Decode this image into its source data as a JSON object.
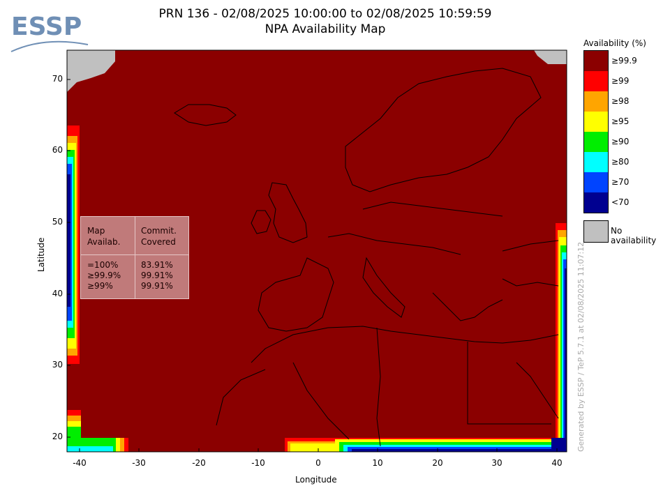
{
  "header": {
    "title_line1": "PRN 136 - 02/08/2025 10:00:00 to 02/08/2025 10:59:59",
    "title_line2": "NPA Availability Map"
  },
  "logo": {
    "text": "ESSP",
    "color": "#6f8fb5"
  },
  "axes": {
    "xlabel": "Longitude",
    "ylabel": "Latitude",
    "xticks": [
      "-40",
      "-30",
      "-20",
      "-10",
      "0",
      "10",
      "20",
      "30",
      "40"
    ],
    "yticks": [
      "70",
      "60",
      "50",
      "40",
      "30",
      "20"
    ],
    "xlim": [
      -42,
      42
    ],
    "ylim": [
      18,
      74
    ]
  },
  "legend": {
    "title": "Availability (%)",
    "entries": [
      {
        "label": "≥99.9",
        "color": "#8b0000"
      },
      {
        "label": "≥99",
        "color": "#ff0000"
      },
      {
        "label": "≥98",
        "color": "#ffa500"
      },
      {
        "label": "≥95",
        "color": "#ffff00"
      },
      {
        "label": "≥90",
        "color": "#00ee00"
      },
      {
        "label": "≥80",
        "color": "#00ffff"
      },
      {
        "label": "≥70",
        "color": "#0044ff"
      },
      {
        "label": "<70",
        "color": "#000090"
      }
    ],
    "no_availability": {
      "label": "No availability",
      "color": "#c0c0c0"
    }
  },
  "stats": {
    "col1_header_line1": "Map",
    "col1_header_line2": "Availab.",
    "col2_header_line1": "Commit.",
    "col2_header_line2": "Covered",
    "rows": [
      {
        "map": "=100%",
        "covered": "83.91%"
      },
      {
        "map": "≥99.9%",
        "covered": "99.91%"
      },
      {
        "map": "≥99%",
        "covered": "99.91%"
      }
    ]
  },
  "watermark": "Generated by ESSP / TeP 5.7.1 at 02/08/2025 11:07:12",
  "chart_data": {
    "type": "heatmap",
    "title": "NPA Availability Map",
    "xlabel": "Longitude",
    "ylabel": "Latitude",
    "xlim": [
      -42,
      42
    ],
    "ylim": [
      18,
      74
    ],
    "dominant_class": "≥99.9",
    "coverage": [
      {
        "class": "=100%",
        "committed_area_covered": "83.91%"
      },
      {
        "class": "≥99.9%",
        "committed_area_covered": "99.91%"
      },
      {
        "class": "≥99%",
        "committed_area_covered": "99.91%"
      }
    ]
  }
}
